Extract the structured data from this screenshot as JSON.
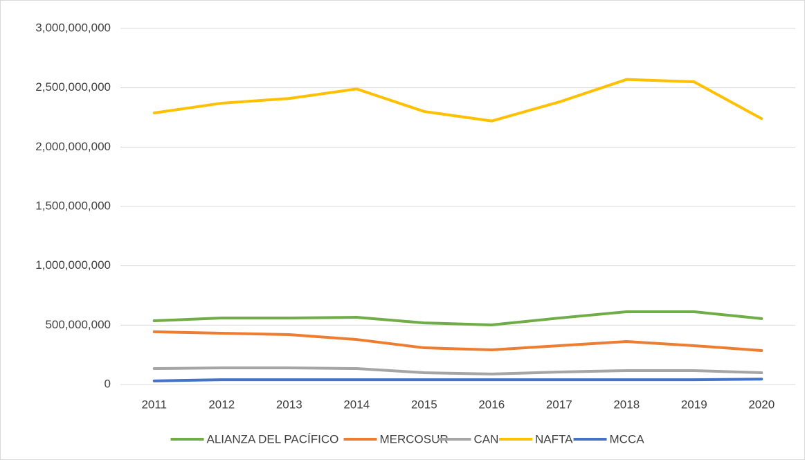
{
  "chart_data": {
    "type": "line",
    "categories": [
      "2011",
      "2012",
      "2013",
      "2014",
      "2015",
      "2016",
      "2017",
      "2018",
      "2019",
      "2020"
    ],
    "series": [
      {
        "name": "ALIANZA DEL PACÍFICO",
        "color": "#70ad47",
        "values": [
          537000000,
          560000000,
          560000000,
          566000000,
          519000000,
          502000000,
          560000000,
          613000000,
          613000000,
          555000000
        ]
      },
      {
        "name": "MERCOSUR",
        "color": "#ed7d31",
        "values": [
          444000000,
          432000000,
          420000000,
          379000000,
          309000000,
          292000000,
          327000000,
          362000000,
          327000000,
          286000000
        ]
      },
      {
        "name": "CAN",
        "color": "#a5a5a5",
        "values": [
          134000000,
          140000000,
          140000000,
          134000000,
          99000000,
          88000000,
          105000000,
          117000000,
          117000000,
          99000000
        ]
      },
      {
        "name": "NAFTA",
        "color": "#ffc000",
        "values": [
          2288000000,
          2370000000,
          2410000000,
          2490000000,
          2300000000,
          2220000000,
          2380000000,
          2570000000,
          2550000000,
          2240000000
        ]
      },
      {
        "name": "MCCA",
        "color": "#4472c4",
        "values": [
          30000000,
          40000000,
          40000000,
          40000000,
          40000000,
          40000000,
          40000000,
          40000000,
          40000000,
          45000000
        ]
      }
    ],
    "ylim": [
      0,
      3000000000
    ],
    "yticks": [
      0,
      {
        "value": 500000000,
        "label": "500,000,000"
      },
      {
        "value": 1000000000,
        "label": "1,000,000,000"
      },
      {
        "value": 1500000000,
        "label": "1,500,000,000"
      },
      {
        "value": 2000000000,
        "label": "2,000,000,000"
      },
      {
        "value": 2500000000,
        "label": "2,500,000,000"
      },
      {
        "value": 3000000000,
        "label": "3,000,000,000"
      }
    ],
    "grid": true,
    "legend": "bottom"
  }
}
